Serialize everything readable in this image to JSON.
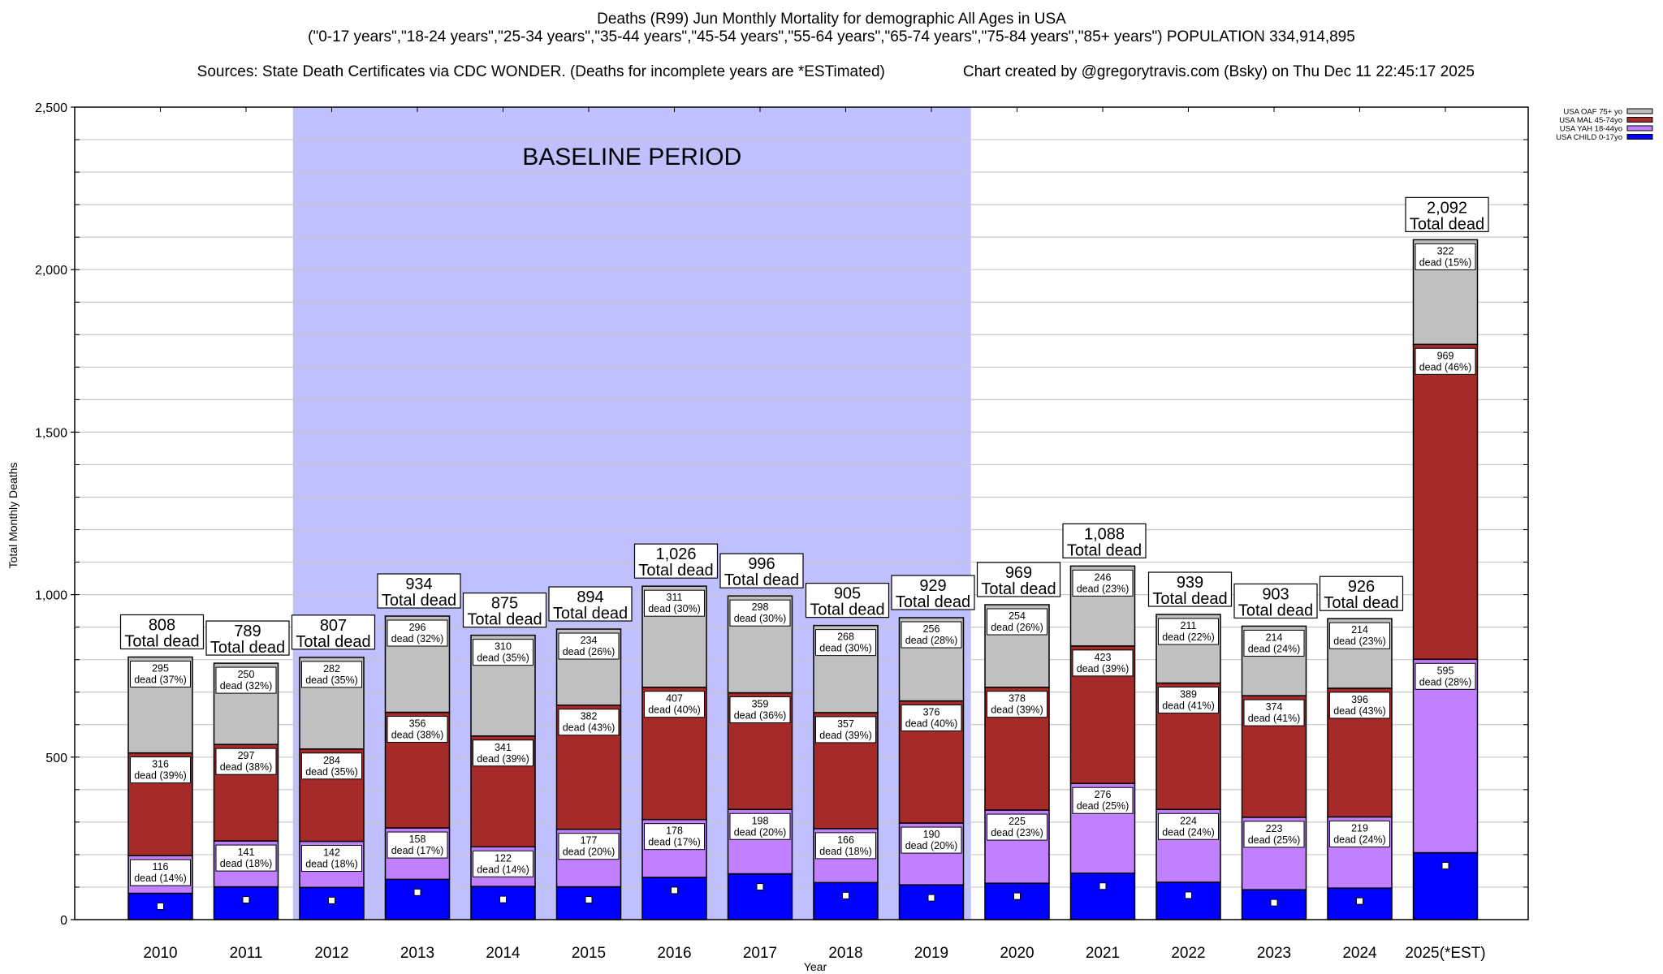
{
  "chart_data": {
    "type": "bar",
    "stacked": true,
    "title": "Deaths (R99) Jun Monthly Mortality for demographic All Ages in USA",
    "subtitle": "(\"0-17 years\",\"18-24 years\",\"25-34 years\",\"35-44 years\",\"45-54 years\",\"55-64 years\",\"65-74 years\",\"75-84 years\",\"85+ years\") POPULATION 334,914,895",
    "sources": "Sources: State Death Certificates via CDC WONDER. (Deaths for incomplete years are *ESTimated)",
    "credit": "Chart created by @gregorytravis.com (Bsky) on Thu Dec 11 22:45:17 2025",
    "xlabel": "Year",
    "ylabel": "Total Monthly Deaths",
    "ylim": [
      0,
      2500
    ],
    "yticks": [
      0,
      500,
      1000,
      1500,
      2000,
      2500
    ],
    "ytick_labels": [
      "0",
      "500",
      "1,000",
      "1,500",
      "2,000",
      "2,500"
    ],
    "minor_grid_step": 100,
    "grid": true,
    "legend_position": "top-right (outside plot)",
    "annotation": {
      "text": "BASELINE PERIOD",
      "start_category": "2012",
      "end_category": "2019",
      "color": "#c0c0ff"
    },
    "categories": [
      "2010",
      "2011",
      "2012",
      "2013",
      "2014",
      "2015",
      "2016",
      "2017",
      "2018",
      "2019",
      "2020",
      "2021",
      "2022",
      "2023",
      "2024",
      "2025(*EST)"
    ],
    "totals": [
      808,
      789,
      807,
      934,
      875,
      894,
      1026,
      996,
      905,
      929,
      969,
      1088,
      939,
      903,
      926,
      2092
    ],
    "total_labels": [
      "808",
      "789",
      "807",
      "934",
      "875",
      "894",
      "1,026",
      "996",
      "905",
      "929",
      "969",
      "1,088",
      "939",
      "903",
      "926",
      "2,092"
    ],
    "total_suffix": "Total dead",
    "segment_label_prefix": "dead",
    "series": [
      {
        "name": "USA CHILD 0-17yo",
        "color": "#0000ff",
        "values": [
          81,
          101,
          99,
          124,
          102,
          101,
          130,
          141,
          114,
          107,
          112,
          143,
          115,
          92,
          97,
          206
        ],
        "labeled": false
      },
      {
        "name": "USA YAH 18-44yo",
        "color": "#c080ff",
        "values": [
          116,
          141,
          142,
          158,
          122,
          177,
          178,
          198,
          166,
          190,
          225,
          276,
          224,
          223,
          219,
          595
        ],
        "percents": [
          "14%",
          "18%",
          "18%",
          "17%",
          "14%",
          "20%",
          "17%",
          "20%",
          "18%",
          "20%",
          "23%",
          "25%",
          "24%",
          "25%",
          "24%",
          "28%"
        ],
        "labeled": true
      },
      {
        "name": "USA MAL 45-74yo",
        "color": "#a52a2a",
        "values": [
          316,
          297,
          284,
          356,
          341,
          382,
          407,
          359,
          357,
          376,
          378,
          423,
          389,
          374,
          396,
          969
        ],
        "percents": [
          "39%",
          "38%",
          "35%",
          "38%",
          "39%",
          "43%",
          "40%",
          "36%",
          "39%",
          "40%",
          "39%",
          "39%",
          "41%",
          "41%",
          "43%",
          "46%"
        ],
        "labeled": true
      },
      {
        "name": "USA OAF 75+ yo",
        "color": "#c0c0c0",
        "values": [
          295,
          250,
          282,
          296,
          310,
          234,
          311,
          298,
          268,
          256,
          254,
          246,
          211,
          214,
          214,
          322
        ],
        "percents": [
          "37%",
          "32%",
          "35%",
          "32%",
          "35%",
          "26%",
          "30%",
          "30%",
          "30%",
          "28%",
          "26%",
          "23%",
          "22%",
          "24%",
          "23%",
          "15%"
        ],
        "labeled": true
      }
    ],
    "legend_order": [
      "USA OAF 75+ yo",
      "USA MAL 45-74yo",
      "USA YAH 18-44yo",
      "USA CHILD 0-17yo"
    ]
  }
}
